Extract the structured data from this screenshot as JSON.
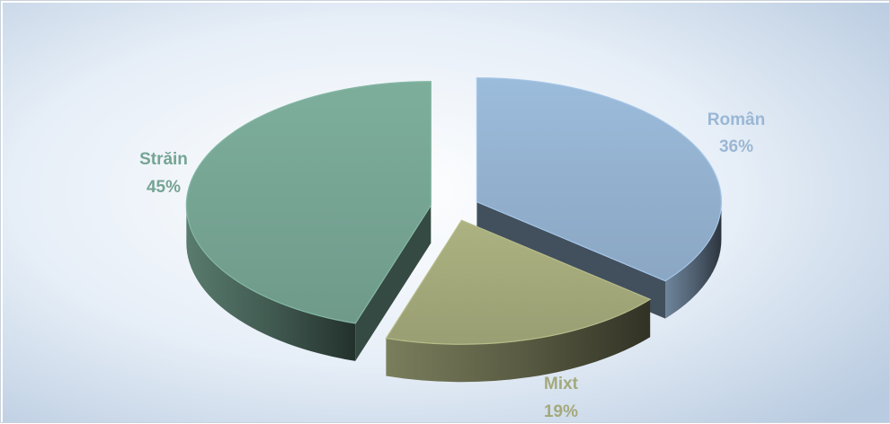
{
  "chart_data": {
    "type": "pie",
    "style": "3d-exploded",
    "title": "",
    "legend": "none",
    "slices": [
      {
        "name": "Român",
        "value": 36,
        "label": "36%",
        "color": "#93b1cf"
      },
      {
        "name": "Mixt",
        "value": 19,
        "label": "19%",
        "color": "#a3a87a"
      },
      {
        "name": "Străin",
        "value": 45,
        "label": "45%",
        "color": "#76a493"
      }
    ]
  }
}
